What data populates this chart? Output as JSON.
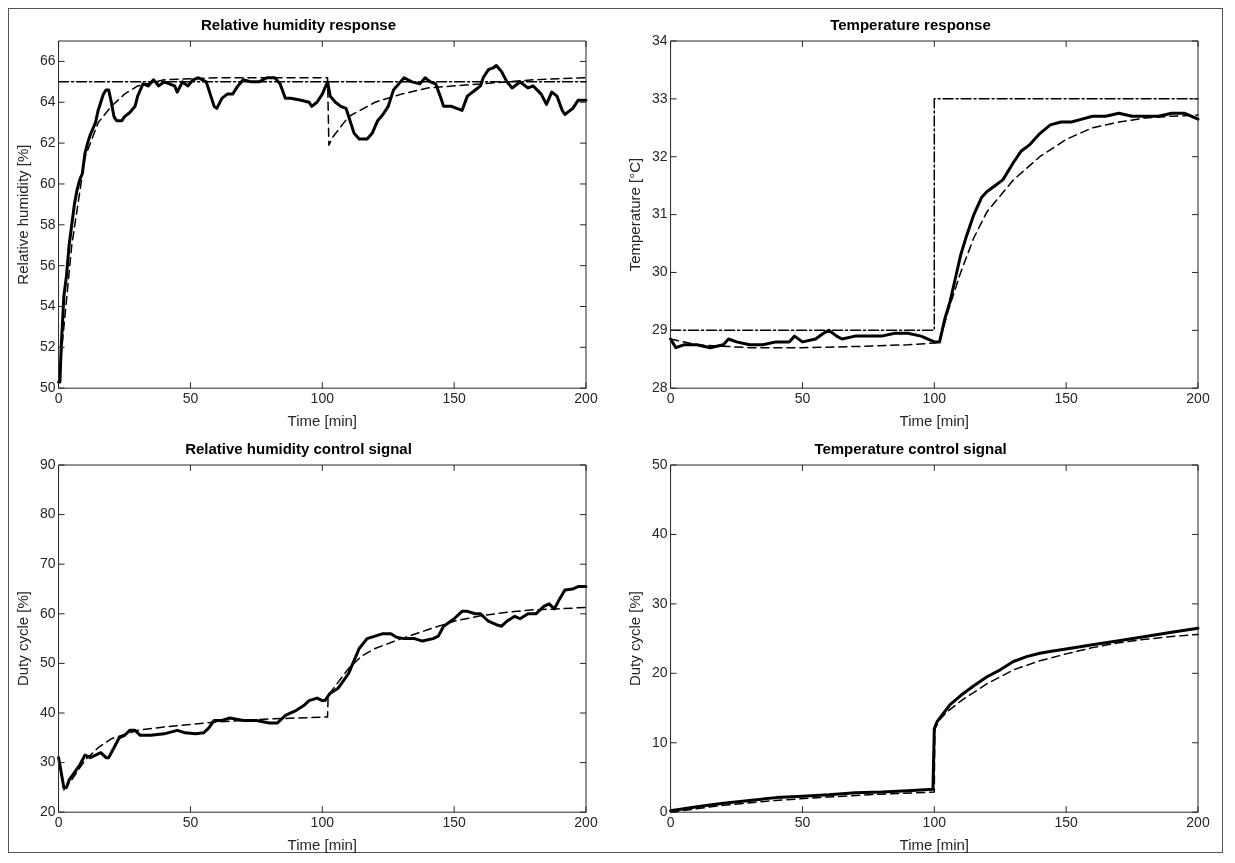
{
  "chart_data": [
    {
      "type": "line",
      "title": "Relative humidity response",
      "xlabel": "Time [min]",
      "ylabel": "Relative humidity [%]",
      "xlim": [
        0,
        200
      ],
      "xticks": [
        0,
        50,
        100,
        150,
        200
      ],
      "ylim": [
        50,
        67
      ],
      "yticks": [
        50,
        52,
        54,
        56,
        58,
        60,
        62,
        64,
        66
      ],
      "series": [
        {
          "color": "#000000",
          "line_style": "solid",
          "x": [
            0,
            0.5,
            1,
            2,
            3,
            4,
            5,
            6,
            7,
            8,
            9,
            10,
            11,
            12,
            13,
            14,
            15,
            16,
            17,
            18,
            19,
            20,
            21,
            22,
            24,
            25,
            27,
            29,
            30,
            32,
            34,
            36,
            38,
            40,
            42,
            44,
            45,
            47,
            49,
            51,
            53,
            56,
            57,
            59,
            60,
            62,
            64,
            66,
            68,
            70,
            73,
            76,
            79,
            82,
            84,
            86,
            88,
            92,
            95,
            96,
            98,
            100,
            102,
            103,
            105,
            107,
            109,
            110,
            112,
            114,
            117,
            119,
            121,
            123,
            125,
            127,
            129,
            131,
            134,
            137,
            139,
            141,
            143,
            145,
            146,
            149,
            151,
            153,
            155,
            158,
            160,
            161,
            163,
            165,
            166,
            168,
            170,
            172,
            175,
            178,
            180,
            183,
            185,
            187,
            189,
            191,
            192,
            195,
            197,
            200
          ],
          "values": [
            50.3,
            50.3,
            52,
            54.5,
            55.5,
            57,
            58,
            59,
            59.7,
            60.2,
            60.5,
            61.5,
            62,
            62.4,
            62.7,
            63,
            63.6,
            64,
            64.4,
            64.6,
            64.6,
            64,
            63.3,
            63.1,
            63.1,
            63.3,
            63.5,
            63.8,
            64.3,
            64.9,
            64.8,
            65.1,
            64.8,
            65,
            64.9,
            64.8,
            64.5,
            65,
            64.8,
            65.1,
            65.2,
            65,
            64.6,
            63.8,
            63.7,
            64.2,
            64.4,
            64.4,
            64.8,
            65.1,
            65,
            65,
            65.2,
            65.2,
            64.9,
            64.2,
            64.2,
            64.1,
            64,
            63.8,
            64,
            64.4,
            65,
            64.3,
            64,
            63.8,
            63.7,
            63.3,
            62.5,
            62.2,
            62.2,
            62.5,
            63.1,
            63.4,
            63.8,
            64.6,
            64.9,
            65.2,
            65,
            64.9,
            65.2,
            65,
            64.9,
            64.2,
            63.8,
            63.8,
            63.7,
            63.6,
            64.3,
            64.6,
            64.8,
            65.2,
            65.6,
            65.7,
            65.8,
            65.5,
            65,
            64.7,
            65,
            64.7,
            64.8,
            64.4,
            63.9,
            64.5,
            64.3,
            63.6,
            63.4,
            63.7,
            64.1,
            64.1
          ]
        },
        {
          "color": "#000000",
          "line_style": "dashed",
          "x": [
            0,
            5,
            10,
            15,
            20,
            25,
            30,
            40,
            60,
            80,
            102,
            102.5,
            104,
            110,
            120,
            130,
            140,
            160,
            180,
            200
          ],
          "values": [
            50.3,
            57,
            61.3,
            63,
            63.8,
            64.4,
            64.8,
            65.1,
            65.2,
            65.2,
            65.2,
            61.9,
            62.3,
            63.3,
            64,
            64.4,
            64.7,
            64.9,
            65.1,
            65.2
          ]
        },
        {
          "color": "#000000",
          "line_style": "dotted",
          "x": [
            0,
            200
          ],
          "values": [
            65,
            65
          ]
        }
      ]
    },
    {
      "type": "line",
      "title": "Temperature response",
      "xlabel": "Time [min]",
      "ylabel": "Temperature [°C]",
      "xlim": [
        0,
        200
      ],
      "xticks": [
        0,
        50,
        100,
        150,
        200
      ],
      "ylim": [
        28,
        34
      ],
      "yticks": [
        28,
        29,
        30,
        31,
        32,
        33,
        34
      ],
      "series": [
        {
          "color": "#000000",
          "line_style": "solid",
          "x": [
            0,
            2,
            5,
            10,
            15,
            20,
            22,
            25,
            30,
            35,
            40,
            45,
            47,
            50,
            55,
            58,
            60,
            63,
            65,
            70,
            75,
            80,
            85,
            90,
            95,
            100,
            102,
            104,
            106,
            108,
            110,
            112,
            115,
            118,
            120,
            123,
            126,
            130,
            133,
            136,
            140,
            144,
            148,
            152,
            156,
            160,
            165,
            170,
            175,
            180,
            185,
            190,
            195,
            200
          ],
          "values": [
            28.85,
            28.7,
            28.75,
            28.75,
            28.7,
            28.75,
            28.85,
            28.8,
            28.75,
            28.75,
            28.8,
            28.8,
            28.9,
            28.8,
            28.85,
            28.95,
            29,
            28.9,
            28.85,
            28.9,
            28.9,
            28.9,
            28.95,
            28.95,
            28.9,
            28.8,
            28.8,
            29.2,
            29.5,
            29.9,
            30.3,
            30.6,
            31,
            31.3,
            31.4,
            31.5,
            31.6,
            31.9,
            32.1,
            32.2,
            32.4,
            32.55,
            32.6,
            32.6,
            32.65,
            32.7,
            32.7,
            32.75,
            32.7,
            32.7,
            32.7,
            32.75,
            32.75,
            32.65
          ]
        },
        {
          "color": "#000000",
          "line_style": "dashed",
          "x": [
            0,
            10,
            30,
            50,
            70,
            90,
            100,
            102,
            105,
            110,
            115,
            120,
            130,
            140,
            150,
            160,
            170,
            180,
            190,
            200
          ],
          "values": [
            28.85,
            28.75,
            28.7,
            28.7,
            28.72,
            28.75,
            28.78,
            28.8,
            29.3,
            30,
            30.6,
            31.05,
            31.6,
            32,
            32.3,
            32.5,
            32.6,
            32.67,
            32.7,
            32.72
          ]
        },
        {
          "color": "#000000",
          "line_style": "dotted",
          "x": [
            0,
            100,
            100,
            200
          ],
          "values": [
            29,
            29,
            33,
            33
          ]
        }
      ]
    },
    {
      "type": "line",
      "title": "Relative humidity control signal",
      "xlabel": "Time [min]",
      "ylabel": "Duty cycle [%]",
      "xlim": [
        0,
        200
      ],
      "xticks": [
        0,
        50,
        100,
        150,
        200
      ],
      "ylim": [
        20,
        90
      ],
      "yticks": [
        20,
        30,
        40,
        50,
        60,
        70,
        80,
        90
      ],
      "series": [
        {
          "color": "#000000",
          "line_style": "solid",
          "x": [
            0,
            1,
            2,
            3,
            4,
            6,
            8,
            10,
            12,
            14,
            16,
            18,
            19,
            21,
            23,
            25,
            27,
            29,
            31,
            35,
            40,
            45,
            48,
            52,
            55,
            57,
            59,
            62,
            65,
            70,
            75,
            80,
            83,
            86,
            90,
            93,
            95,
            98,
            100,
            101,
            103,
            106,
            108,
            110,
            112,
            114,
            117,
            120,
            123,
            126,
            128,
            131,
            135,
            138,
            142,
            144,
            146,
            150,
            153,
            155,
            158,
            160,
            163,
            166,
            168,
            170,
            173,
            175,
            178,
            181,
            184,
            186,
            188,
            190,
            192,
            195,
            197,
            200
          ],
          "values": [
            31,
            28,
            25,
            25,
            26.5,
            28,
            29.5,
            31.5,
            31,
            31.5,
            32,
            31,
            31,
            33,
            35,
            35.5,
            36.5,
            36.5,
            35.5,
            35.5,
            35.8,
            36.5,
            36,
            35.8,
            36,
            37,
            38.5,
            38.5,
            39,
            38.5,
            38.5,
            38,
            38,
            39.5,
            40.5,
            41.5,
            42.5,
            43,
            42.5,
            42.5,
            44,
            45,
            46.5,
            48,
            50.5,
            53,
            55,
            55.5,
            56,
            56,
            55.3,
            55,
            55,
            54.5,
            55,
            55.5,
            57.5,
            59,
            60.5,
            60.5,
            60,
            60,
            58.5,
            57.8,
            57.5,
            58.5,
            59.5,
            59,
            60,
            60,
            61.5,
            62,
            61,
            63,
            64.8,
            65,
            65.5,
            65.5
          ]
        },
        {
          "color": "#000000",
          "line_style": "dashed",
          "x": [
            2,
            5,
            10,
            15,
            20,
            30,
            40,
            60,
            80,
            102,
            102.2,
            105,
            110,
            115,
            120,
            130,
            140,
            150,
            160,
            170,
            180,
            190,
            200
          ],
          "values": [
            24.5,
            26.5,
            30.5,
            33,
            34.8,
            36.5,
            37.2,
            38.2,
            38.8,
            39.2,
            43.5,
            45.5,
            49,
            51.5,
            53,
            55,
            56.8,
            58.5,
            59.6,
            60.3,
            60.8,
            61,
            61.3
          ]
        }
      ]
    },
    {
      "type": "line",
      "title": "Temperature control signal",
      "xlabel": "Time [min]",
      "ylabel": "Duty cycle [%]",
      "xlim": [
        0,
        200
      ],
      "xticks": [
        0,
        50,
        100,
        150,
        200
      ],
      "ylim": [
        0,
        50
      ],
      "yticks": [
        0,
        10,
        20,
        30,
        40,
        50
      ],
      "series": [
        {
          "color": "#000000",
          "line_style": "solid",
          "x": [
            0,
            10,
            20,
            30,
            40,
            50,
            60,
            70,
            80,
            90,
            99.5,
            100,
            101,
            103,
            106,
            110,
            115,
            120,
            125,
            130,
            135,
            140,
            145,
            150,
            160,
            170,
            180,
            190,
            200
          ],
          "values": [
            0.2,
            0.8,
            1.3,
            1.7,
            2.1,
            2.3,
            2.5,
            2.8,
            2.9,
            3.1,
            3.3,
            12,
            13,
            14,
            15.5,
            16.8,
            18.2,
            19.5,
            20.5,
            21.7,
            22.4,
            22.9,
            23.2,
            23.5,
            24.1,
            24.7,
            25.3,
            25.9,
            26.5
          ]
        },
        {
          "color": "#000000",
          "line_style": "dashed",
          "x": [
            0,
            20,
            40,
            60,
            80,
            100,
            100.2,
            102,
            105,
            110,
            120,
            130,
            140,
            150,
            160,
            170,
            180,
            190,
            200
          ],
          "values": [
            0,
            1,
            1.7,
            2.2,
            2.6,
            2.9,
            12,
            13.3,
            14.5,
            16,
            18.5,
            20.5,
            21.8,
            22.8,
            23.7,
            24.4,
            24.9,
            25.3,
            25.6
          ]
        }
      ]
    }
  ]
}
